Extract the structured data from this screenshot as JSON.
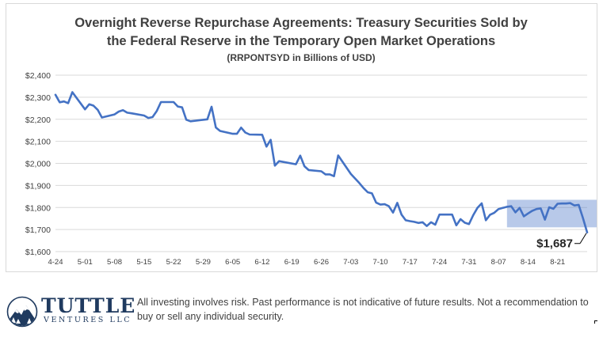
{
  "chart_data": {
    "type": "line",
    "title_line1": "Overnight Reverse Repurchase Agreements: Treasury Securities Sold by",
    "title_line2": "the Federal Reserve in the Temporary Open Market Operations",
    "subtitle": "(RRPONTSYD in Billions of USD)",
    "xlabel": "",
    "ylabel": "",
    "ylim": [
      1600,
      2400
    ],
    "y_ticks": [
      1600,
      1700,
      1800,
      1900,
      2000,
      2100,
      2200,
      2300,
      2400
    ],
    "y_tick_labels": [
      "$1,600",
      "$1,700",
      "$1,800",
      "$1,900",
      "$2,000",
      "$2,100",
      "$2,200",
      "$2,300",
      "$2,400"
    ],
    "x_tick_labels": [
      "4-24",
      "5-01",
      "5-08",
      "5-15",
      "5-22",
      "5-29",
      "6-05",
      "6-12",
      "6-19",
      "6-26",
      "7-03",
      "7-10",
      "7-17",
      "7-24",
      "7-31",
      "8-07",
      "8-14",
      "8-21"
    ],
    "grid": true,
    "line_color": "#4472c4",
    "highlight_color": "#4472c4",
    "highlight_range": {
      "x_start": 7.4,
      "x_end": 8.73,
      "y_start": 1710,
      "y_end": 1835
    },
    "series": [
      {
        "name": "RRPONTSYD",
        "points": [
          [
            4.24,
            2311
          ],
          [
            4.25,
            2277
          ],
          [
            4.26,
            2281
          ],
          [
            4.27,
            2273
          ],
          [
            4.28,
            2323
          ],
          [
            5.01,
            2245
          ],
          [
            5.02,
            2268
          ],
          [
            5.03,
            2262
          ],
          [
            5.04,
            2243
          ],
          [
            5.05,
            2208
          ],
          [
            5.08,
            2222
          ],
          [
            5.09,
            2235
          ],
          [
            5.1,
            2241
          ],
          [
            5.11,
            2230
          ],
          [
            5.12,
            2227
          ],
          [
            5.15,
            2217
          ],
          [
            5.16,
            2206
          ],
          [
            5.17,
            2210
          ],
          [
            5.18,
            2237
          ],
          [
            5.19,
            2278
          ],
          [
            5.22,
            2278
          ],
          [
            5.23,
            2258
          ],
          [
            5.24,
            2254
          ],
          [
            5.25,
            2198
          ],
          [
            5.26,
            2191
          ],
          [
            5.3,
            2200
          ],
          [
            5.31,
            2257
          ],
          [
            6.01,
            2163
          ],
          [
            6.02,
            2147
          ],
          [
            6.05,
            2134
          ],
          [
            6.06,
            2134
          ],
          [
            6.07,
            2162
          ],
          [
            6.08,
            2140
          ],
          [
            6.09,
            2131
          ],
          [
            6.12,
            2130
          ],
          [
            6.13,
            2076
          ],
          [
            6.14,
            2107
          ],
          [
            6.15,
            1990
          ],
          [
            6.16,
            2010
          ],
          [
            6.2,
            1996
          ],
          [
            6.21,
            2035
          ],
          [
            6.22,
            1987
          ],
          [
            6.23,
            1970
          ],
          [
            6.26,
            1964
          ],
          [
            6.27,
            1950
          ],
          [
            6.28,
            1950
          ],
          [
            6.29,
            1942
          ],
          [
            6.3,
            2036
          ],
          [
            7.03,
            1952
          ],
          [
            7.05,
            1911
          ],
          [
            7.06,
            1888
          ],
          [
            7.07,
            1869
          ],
          [
            7.08,
            1864
          ],
          [
            7.09,
            1822
          ],
          [
            7.1,
            1813
          ],
          [
            7.11,
            1815
          ],
          [
            7.12,
            1806
          ],
          [
            7.13,
            1777
          ],
          [
            7.14,
            1821
          ],
          [
            7.15,
            1768
          ],
          [
            7.16,
            1742
          ],
          [
            7.17,
            1738
          ],
          [
            7.18,
            1735
          ],
          [
            7.19,
            1730
          ],
          [
            7.2,
            1733
          ],
          [
            7.21,
            1716
          ],
          [
            7.22,
            1733
          ],
          [
            7.23,
            1722
          ],
          [
            7.24,
            1768
          ],
          [
            7.25,
            1768
          ],
          [
            7.26,
            1768
          ],
          [
            7.27,
            1768
          ],
          [
            7.28,
            1719
          ],
          [
            7.29,
            1747
          ],
          [
            7.3,
            1731
          ],
          [
            7.31,
            1725
          ],
          [
            8.01,
            1765
          ],
          [
            8.02,
            1798
          ],
          [
            8.03,
            1819
          ],
          [
            8.04,
            1742
          ],
          [
            8.05,
            1767
          ],
          [
            8.06,
            1776
          ],
          [
            8.07,
            1793
          ],
          [
            8.08,
            1798
          ],
          [
            8.09,
            1803
          ],
          [
            8.1,
            1806
          ],
          [
            8.11,
            1778
          ],
          [
            8.12,
            1798
          ],
          [
            8.13,
            1760
          ],
          [
            8.14,
            1773
          ],
          [
            8.15,
            1785
          ],
          [
            8.16,
            1793
          ],
          [
            8.17,
            1796
          ],
          [
            8.18,
            1745
          ],
          [
            8.19,
            1801
          ],
          [
            8.2,
            1794
          ],
          [
            8.21,
            1817
          ],
          [
            8.22,
            1818
          ],
          [
            8.23,
            1818
          ],
          [
            8.24,
            1820
          ],
          [
            8.25,
            1809
          ],
          [
            8.26,
            1812
          ],
          [
            8.27,
            1752
          ],
          [
            8.28,
            1687
          ]
        ]
      }
    ],
    "last_value_label": "$1,687",
    "annotations": [
      "$1,687"
    ]
  },
  "footer": {
    "logo_name": "TUTTLE",
    "logo_sub": "VENTURES LLC",
    "disclaimer": "All investing involves risk. Past performance is not indicative of future results. Not a recommendation to buy or sell any individual security."
  }
}
